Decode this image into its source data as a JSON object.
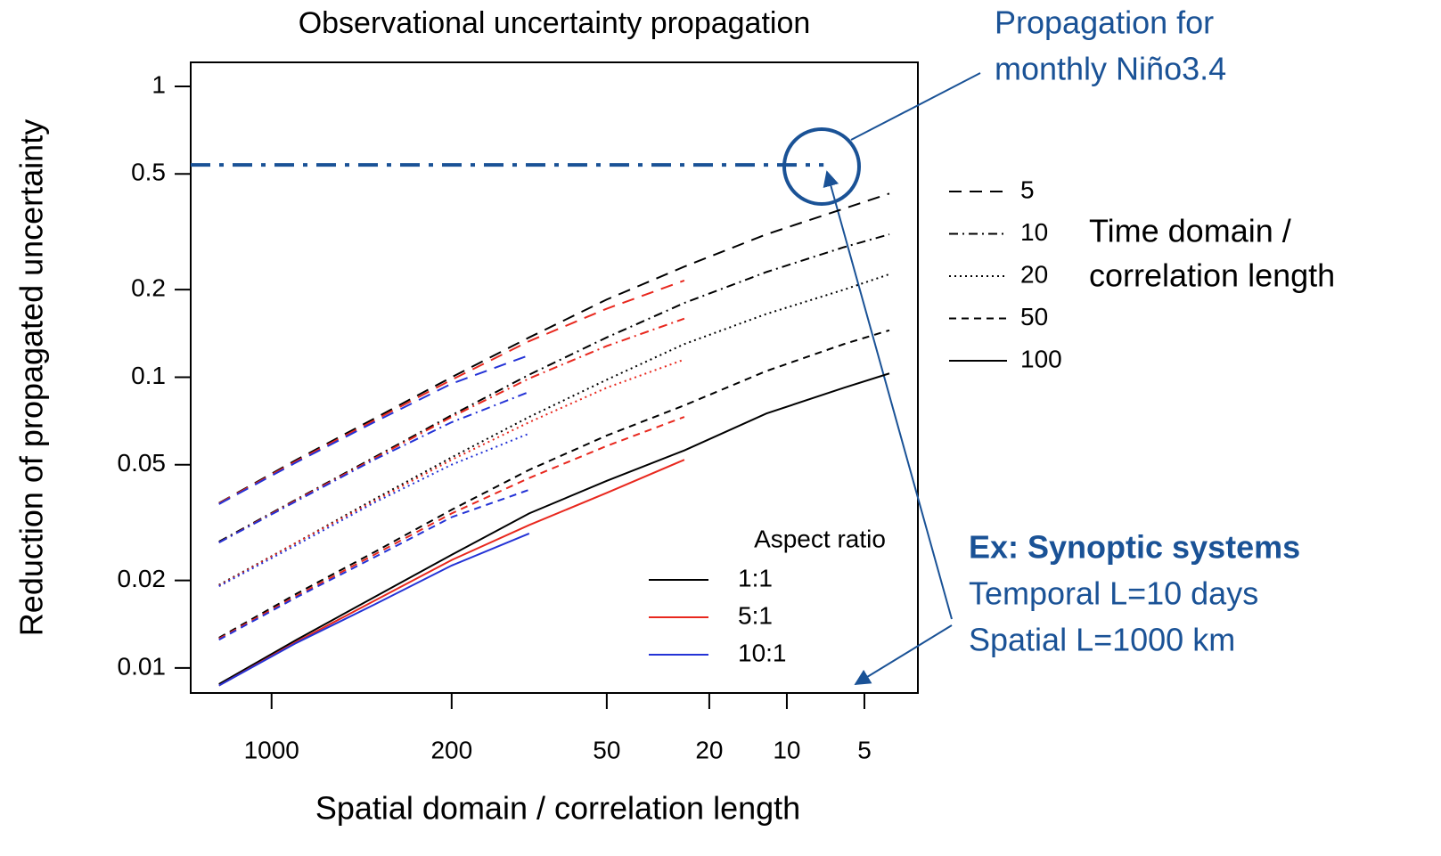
{
  "chart_data": {
    "type": "line",
    "title": "Observational uncertainty propagation",
    "x_label": "Spatial domain / correlation length",
    "y_label": "Reduction of propagated uncertainty",
    "log_x": true,
    "log_y": true,
    "xlim": [
      2060,
      3.1
    ],
    "ylim": [
      0.0082,
      1.21
    ],
    "xticks": [
      1000,
      200,
      50,
      20,
      10,
      5
    ],
    "yticks": [
      1,
      0.5,
      0.2,
      0.1,
      0.05,
      0.02,
      0.01
    ],
    "x": [
      1600,
      800,
      400,
      200,
      100,
      50,
      25,
      12,
      6,
      4
    ],
    "aspect_legend_title": "Aspect ratio",
    "aspect_ratios": [
      {
        "name": "1:1",
        "color": "#000000"
      },
      {
        "name": "5:1",
        "color": "#e8281e"
      },
      {
        "name": "10:1",
        "color": "#2433d6"
      }
    ],
    "time_legend_title": [
      "Time domain /",
      "correlation length"
    ],
    "series": [
      {
        "name": "5",
        "dash": "14 9",
        "values": [
          [
            0.0369,
            0.052,
            0.072,
            0.1,
            0.137,
            0.185,
            0.24,
            0.31,
            0.38,
            0.428
          ],
          [
            0.0368,
            0.0515,
            0.071,
            0.098,
            0.133,
            0.172,
            0.215,
            null,
            null,
            null
          ],
          [
            0.0366,
            0.051,
            0.07,
            0.095,
            0.119,
            null,
            null,
            null,
            null,
            null
          ]
        ]
      },
      {
        "name": "10",
        "dash": "10 5 2 5",
        "values": [
          [
            0.0272,
            0.038,
            0.053,
            0.074,
            0.102,
            0.137,
            0.18,
            0.23,
            0.28,
            0.31
          ],
          [
            0.027,
            0.0378,
            0.0525,
            0.073,
            0.099,
            0.128,
            0.159,
            null,
            null,
            null
          ],
          [
            0.027,
            0.0375,
            0.052,
            0.07,
            0.089,
            null,
            null,
            null,
            null,
            null
          ]
        ]
      },
      {
        "name": "20",
        "dash": "2 4",
        "values": [
          [
            0.0193,
            0.027,
            0.038,
            0.053,
            0.073,
            0.098,
            0.13,
            0.165,
            0.2,
            0.226
          ],
          [
            0.0192,
            0.027,
            0.0375,
            0.052,
            0.07,
            0.092,
            0.115,
            null,
            null,
            null
          ],
          [
            0.0191,
            0.0265,
            0.037,
            0.05,
            0.064,
            null,
            null,
            null,
            null,
            null
          ]
        ]
      },
      {
        "name": "50",
        "dash": "8 6",
        "values": [
          [
            0.0127,
            0.018,
            0.025,
            0.035,
            0.048,
            0.063,
            0.08,
            0.105,
            0.13,
            0.145
          ],
          [
            0.0126,
            0.0177,
            0.0245,
            0.034,
            0.045,
            0.058,
            0.073,
            null,
            null,
            null
          ],
          [
            0.0125,
            0.0175,
            0.024,
            0.033,
            0.041,
            null,
            null,
            null,
            null,
            null
          ]
        ]
      },
      {
        "name": "100",
        "values": [
          [
            0.0088,
            0.0125,
            0.0175,
            0.0245,
            0.034,
            0.044,
            0.056,
            0.075,
            0.092,
            0.103
          ],
          [
            0.0087,
            0.0123,
            0.017,
            0.0235,
            0.031,
            0.04,
            0.052,
            null,
            null,
            null
          ],
          [
            0.0087,
            0.0122,
            0.0165,
            0.0225,
            0.029,
            null,
            null,
            null,
            null,
            null
          ]
        ]
      }
    ],
    "reference": {
      "y": 0.537,
      "x_end": 7.2,
      "color": "#1a5296"
    },
    "annotations": {
      "nino": [
        "Propagation for",
        "monthly Niño3.4"
      ],
      "example_title": "Ex: Synoptic systems",
      "example_lines": [
        "Temporal L=10 days",
        "Spatial L=1000 km"
      ]
    }
  }
}
